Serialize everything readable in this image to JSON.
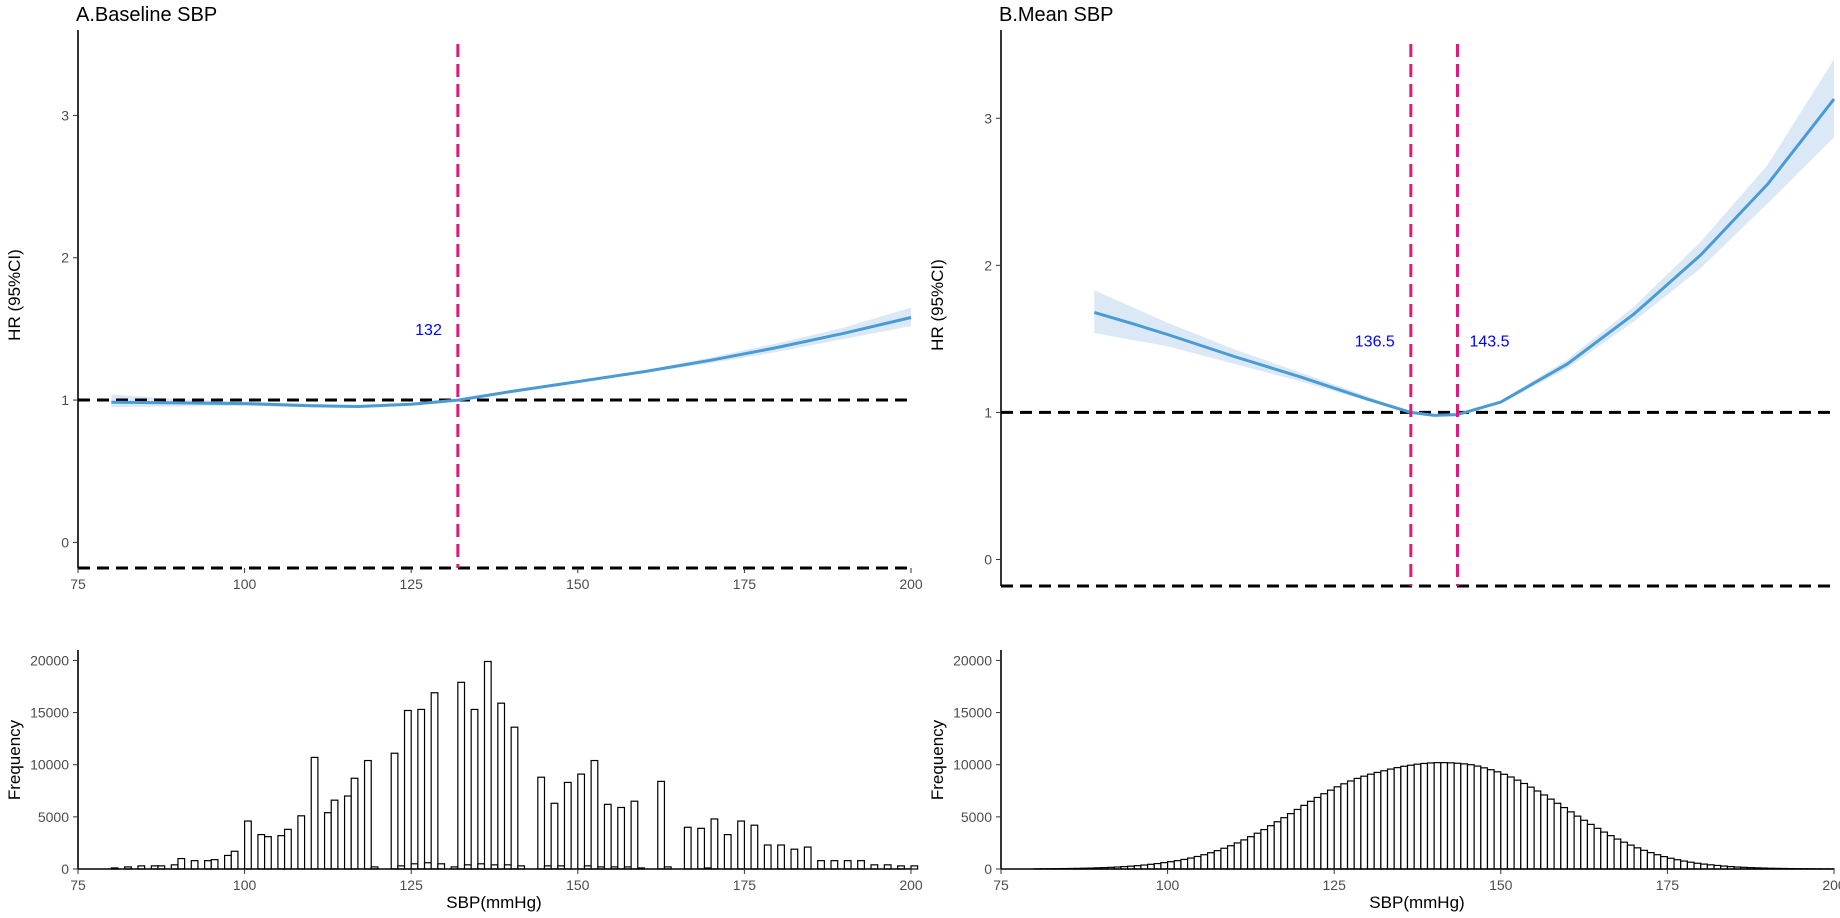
{
  "colors": {
    "curve": "#4a9bd3",
    "ci_band": "#dbe9f6",
    "cutoff_line": "#e0197b",
    "reference_line": "#000000",
    "cut_label": "#0000ff",
    "bar_fill": "#ffffff",
    "bar_stroke": "#000000"
  },
  "chart_data": [
    {
      "id": "A",
      "type": "line",
      "title": "A.Baseline SBP",
      "xlabel": "",
      "ylabel": "HR (95%CI)",
      "xlim": [
        75,
        200
      ],
      "ylim": [
        -0.18,
        3.6
      ],
      "x_ticks": [
        75,
        100,
        125,
        150,
        175,
        200
      ],
      "y_ticks": [
        0,
        1,
        2,
        3
      ],
      "reference_lines": [
        1,
        -0.18
      ],
      "cutoffs": [
        {
          "x": 132,
          "label": "132",
          "label_y": 1.5
        }
      ],
      "series": [
        {
          "name": "HR",
          "x": [
            80,
            90,
            100,
            110,
            117,
            125,
            132,
            140,
            150,
            160,
            170,
            180,
            190,
            200
          ],
          "y": [
            0.985,
            0.98,
            0.975,
            0.96,
            0.955,
            0.97,
            1.0,
            1.06,
            1.13,
            1.2,
            1.28,
            1.37,
            1.47,
            1.58
          ],
          "lower": [
            0.95,
            0.955,
            0.96,
            0.948,
            0.945,
            0.962,
            1.0,
            1.05,
            1.12,
            1.19,
            1.26,
            1.34,
            1.43,
            1.52
          ],
          "upper": [
            1.04,
            1.005,
            0.99,
            0.972,
            0.966,
            0.978,
            1.0,
            1.07,
            1.14,
            1.21,
            1.3,
            1.4,
            1.51,
            1.65
          ]
        }
      ]
    },
    {
      "id": "A-hist",
      "type": "bar",
      "title": "",
      "xlabel": "SBP(mmHg)",
      "ylabel": "Frequency",
      "xlim": [
        75,
        200
      ],
      "ylim": [
        0,
        21000
      ],
      "x_ticks": [
        75,
        100,
        125,
        150,
        175,
        200
      ],
      "y_ticks": [
        0,
        5000,
        10000,
        15000,
        20000
      ],
      "bin_start": 80,
      "bin_width": 1,
      "values": [
        100,
        0,
        200,
        0,
        300,
        0,
        300,
        300,
        0,
        400,
        1000,
        0,
        800,
        0,
        800,
        900,
        0,
        1300,
        1700,
        0,
        4600,
        0,
        3300,
        3100,
        0,
        3200,
        3800,
        0,
        5100,
        0,
        10700,
        0,
        5400,
        6600,
        0,
        7000,
        8700,
        0,
        10400,
        200,
        0,
        0,
        11100,
        300,
        15200,
        500,
        15300,
        600,
        16900,
        500,
        0,
        200,
        17900,
        400,
        15300,
        500,
        19900,
        400,
        15900,
        400,
        13600,
        300,
        0,
        0,
        8800,
        300,
        6300,
        300,
        8300,
        0,
        9100,
        300,
        10400,
        200,
        6200,
        200,
        5900,
        200,
        6500,
        100,
        0,
        0,
        8400,
        200,
        0,
        0,
        4000,
        0,
        3900,
        100,
        4800,
        0,
        3300,
        0,
        4600,
        0,
        4200,
        0,
        2300,
        0,
        2300,
        0,
        1900,
        0,
        2100,
        0,
        800,
        0,
        800,
        0,
        800,
        0,
        800,
        0,
        400,
        0,
        400,
        0,
        300,
        0,
        300
      ]
    },
    {
      "id": "B",
      "type": "line",
      "title": "B.Mean SBP",
      "xlabel": "",
      "ylabel": "HR (95%CI)",
      "xlim": [
        75,
        200
      ],
      "ylim": [
        -0.18,
        3.6
      ],
      "x_ticks": [
        75,
        100,
        125,
        150,
        175,
        200
      ],
      "y_ticks": [
        0,
        1,
        2,
        3
      ],
      "reference_lines": [
        1,
        -0.18
      ],
      "cutoffs": [
        {
          "x": 136.5,
          "label": "136.5",
          "label_y": 1.49
        },
        {
          "x": 143.5,
          "label": "143.5",
          "label_y": 1.49
        }
      ],
      "series": [
        {
          "name": "HR",
          "x": [
            89,
            95,
            100,
            110,
            120,
            130,
            136.5,
            140,
            143.5,
            150,
            160,
            170,
            180,
            190,
            200
          ],
          "y": [
            1.68,
            1.6,
            1.53,
            1.38,
            1.24,
            1.09,
            1.0,
            0.98,
            0.985,
            1.07,
            1.33,
            1.67,
            2.07,
            2.55,
            3.13
          ],
          "lower": [
            1.54,
            1.49,
            1.45,
            1.33,
            1.21,
            1.08,
            1.0,
            0.975,
            0.98,
            1.06,
            1.3,
            1.62,
            1.98,
            2.42,
            2.87
          ],
          "upper": [
            1.83,
            1.71,
            1.61,
            1.43,
            1.27,
            1.11,
            1.0,
            0.985,
            0.99,
            1.08,
            1.36,
            1.72,
            2.16,
            2.68,
            3.4
          ]
        }
      ]
    },
    {
      "id": "B-hist",
      "type": "bar",
      "title": "",
      "xlabel": "SBP(mmHg)",
      "ylabel": "Frequency",
      "xlim": [
        75,
        200
      ],
      "ylim": [
        0,
        21000
      ],
      "x_ticks": [
        75,
        100,
        125,
        150,
        175,
        200
      ],
      "y_ticks": [
        0,
        5000,
        10000,
        15000,
        20000
      ],
      "bin_start": 80,
      "bin_width": 1,
      "values": [
        15,
        20,
        25,
        30,
        40,
        50,
        60,
        75,
        90,
        110,
        130,
        160,
        190,
        230,
        270,
        320,
        380,
        450,
        520,
        610,
        700,
        800,
        920,
        1050,
        1200,
        1370,
        1560,
        1760,
        1990,
        2230,
        2500,
        2790,
        3100,
        3430,
        3780,
        4150,
        4530,
        4920,
        5310,
        5710,
        6100,
        6490,
        6860,
        7220,
        7560,
        7880,
        8170,
        8440,
        8690,
        8900,
        9090,
        9260,
        9420,
        9580,
        9720,
        9850,
        9950,
        10050,
        10120,
        10170,
        10200,
        10200,
        10180,
        10140,
        10080,
        10000,
        9870,
        9700,
        9520,
        9320,
        9080,
        8820,
        8520,
        8200,
        7850,
        7480,
        7100,
        6700,
        6300,
        5890,
        5480,
        5070,
        4670,
        4280,
        3900,
        3540,
        3200,
        2870,
        2570,
        2290,
        2030,
        1790,
        1570,
        1370,
        1190,
        1030,
        890,
        760,
        650,
        550,
        470,
        400,
        340,
        280,
        230,
        190,
        160,
        130,
        110,
        90,
        70,
        60,
        50,
        40,
        30,
        25,
        20,
        15,
        10,
        8
      ]
    }
  ]
}
